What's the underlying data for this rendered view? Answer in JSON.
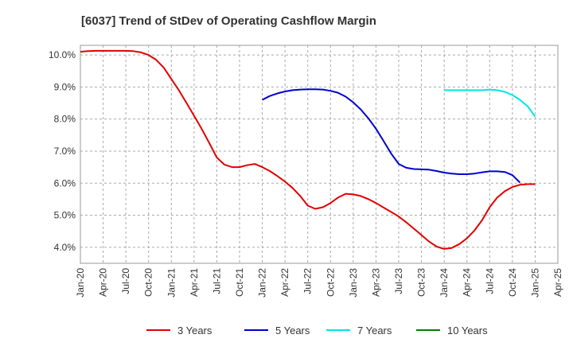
{
  "chart_data": {
    "type": "line",
    "title": "[6037]  Trend of StDev of Operating Cashflow Margin",
    "xlabel": "",
    "ylabel": "",
    "y_tick_labels": [
      "4.0%",
      "5.0%",
      "6.0%",
      "7.0%",
      "8.0%",
      "9.0%",
      "10.0%"
    ],
    "y_ticks": [
      4.0,
      5.0,
      6.0,
      7.0,
      8.0,
      9.0,
      10.0
    ],
    "ylim": [
      3.5,
      10.3
    ],
    "x_tick_labels": [
      "Jan-20",
      "Apr-20",
      "Jul-20",
      "Oct-20",
      "Jan-21",
      "Apr-21",
      "Jul-21",
      "Oct-21",
      "Jan-22",
      "Apr-22",
      "Jul-22",
      "Oct-22",
      "Jan-23",
      "Apr-23",
      "Jul-23",
      "Oct-23",
      "Jan-24",
      "Apr-24",
      "Jul-24",
      "Oct-24",
      "Jan-25",
      "Apr-25"
    ],
    "x_unit": "quarter index from Jan-20",
    "xlim": [
      0,
      21
    ],
    "grid": true,
    "legend_position": "bottom",
    "series": [
      {
        "name": "3 Years",
        "color": "#e00000",
        "points": [
          [
            0,
            10.1
          ],
          [
            0.33,
            10.12
          ],
          [
            0.67,
            10.13
          ],
          [
            1,
            10.13
          ],
          [
            1.33,
            10.13
          ],
          [
            1.67,
            10.13
          ],
          [
            2,
            10.13
          ],
          [
            2.33,
            10.12
          ],
          [
            2.67,
            10.08
          ],
          [
            3,
            10.0
          ],
          [
            3.33,
            9.85
          ],
          [
            3.67,
            9.6
          ],
          [
            4,
            9.25
          ],
          [
            4.33,
            8.9
          ],
          [
            4.67,
            8.5
          ],
          [
            5,
            8.1
          ],
          [
            5.33,
            7.7
          ],
          [
            5.67,
            7.25
          ],
          [
            6,
            6.8
          ],
          [
            6.33,
            6.58
          ],
          [
            6.67,
            6.5
          ],
          [
            7,
            6.5
          ],
          [
            7.33,
            6.56
          ],
          [
            7.67,
            6.6
          ],
          [
            8,
            6.5
          ],
          [
            8.33,
            6.38
          ],
          [
            8.67,
            6.22
          ],
          [
            9,
            6.05
          ],
          [
            9.33,
            5.85
          ],
          [
            9.67,
            5.6
          ],
          [
            10,
            5.3
          ],
          [
            10.33,
            5.2
          ],
          [
            10.67,
            5.25
          ],
          [
            11,
            5.38
          ],
          [
            11.33,
            5.55
          ],
          [
            11.67,
            5.67
          ],
          [
            12,
            5.65
          ],
          [
            12.33,
            5.6
          ],
          [
            12.67,
            5.5
          ],
          [
            13,
            5.38
          ],
          [
            13.33,
            5.24
          ],
          [
            13.67,
            5.1
          ],
          [
            14,
            4.96
          ],
          [
            14.33,
            4.78
          ],
          [
            14.67,
            4.58
          ],
          [
            15,
            4.38
          ],
          [
            15.33,
            4.18
          ],
          [
            15.67,
            4.02
          ],
          [
            16,
            3.95
          ],
          [
            16.33,
            3.98
          ],
          [
            16.67,
            4.1
          ],
          [
            17,
            4.28
          ],
          [
            17.33,
            4.52
          ],
          [
            17.67,
            4.85
          ],
          [
            18,
            5.25
          ],
          [
            18.33,
            5.55
          ],
          [
            18.67,
            5.75
          ],
          [
            19,
            5.88
          ],
          [
            19.33,
            5.95
          ],
          [
            19.67,
            5.97
          ],
          [
            20,
            5.97
          ]
        ]
      },
      {
        "name": "5 Years",
        "color": "#0000cc",
        "points": [
          [
            8,
            8.6
          ],
          [
            8.33,
            8.72
          ],
          [
            8.67,
            8.8
          ],
          [
            9,
            8.86
          ],
          [
            9.33,
            8.9
          ],
          [
            9.67,
            8.92
          ],
          [
            10,
            8.93
          ],
          [
            10.33,
            8.93
          ],
          [
            10.67,
            8.92
          ],
          [
            11,
            8.88
          ],
          [
            11.33,
            8.82
          ],
          [
            11.67,
            8.7
          ],
          [
            12,
            8.52
          ],
          [
            12.33,
            8.3
          ],
          [
            12.67,
            8.02
          ],
          [
            13,
            7.7
          ],
          [
            13.33,
            7.32
          ],
          [
            13.67,
            6.92
          ],
          [
            14,
            6.6
          ],
          [
            14.33,
            6.48
          ],
          [
            14.67,
            6.44
          ],
          [
            15,
            6.43
          ],
          [
            15.33,
            6.42
          ],
          [
            15.67,
            6.38
          ],
          [
            16,
            6.33
          ],
          [
            16.33,
            6.3
          ],
          [
            16.67,
            6.28
          ],
          [
            17,
            6.28
          ],
          [
            17.33,
            6.3
          ],
          [
            17.67,
            6.34
          ],
          [
            18,
            6.37
          ],
          [
            18.33,
            6.37
          ],
          [
            18.67,
            6.35
          ],
          [
            19,
            6.25
          ],
          [
            19.33,
            6.02
          ]
        ]
      },
      {
        "name": "7 Years",
        "color": "#00e5e5",
        "points": [
          [
            16,
            8.9
          ],
          [
            16.33,
            8.9
          ],
          [
            16.67,
            8.9
          ],
          [
            17,
            8.9
          ],
          [
            17.33,
            8.9
          ],
          [
            17.67,
            8.9
          ],
          [
            18,
            8.92
          ],
          [
            18.33,
            8.9
          ],
          [
            18.67,
            8.85
          ],
          [
            19,
            8.75
          ],
          [
            19.33,
            8.6
          ],
          [
            19.67,
            8.4
          ],
          [
            20,
            8.08
          ]
        ]
      },
      {
        "name": "10 Years",
        "color": "#008000",
        "points": []
      }
    ]
  }
}
